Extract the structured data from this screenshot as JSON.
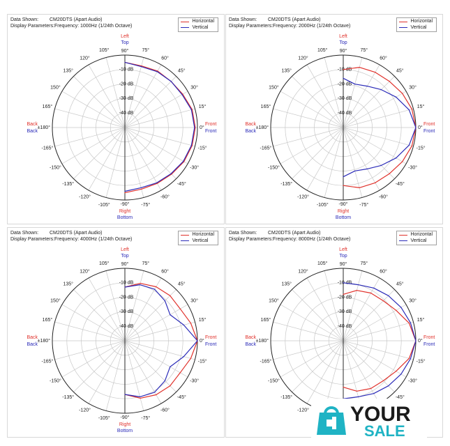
{
  "header_labels": {
    "data_shown": "Data Shown:",
    "display_parameters": "Display Parameters:"
  },
  "legend": {
    "horizontal": "Horizontal",
    "vertical": "Vertical"
  },
  "colors": {
    "horizontal": "#e0302a",
    "vertical": "#2a2ab8",
    "grid": "#c8c8c8",
    "ring": "#222222",
    "text": "#202020"
  },
  "dir_labels": {
    "left": "Left",
    "top": "Top",
    "right": "Right",
    "bottom": "Bottom",
    "front": "Front",
    "back": "Back"
  },
  "angle_labels": [
    "90°",
    "75°",
    "60°",
    "45°",
    "30°",
    "15°",
    "0°",
    "-15°",
    "-30°",
    "-45°",
    "-60°",
    "-75°",
    "-90°",
    "-105°",
    "-120°",
    "-135°",
    "-150°",
    "-165°",
    "±180°",
    "165°",
    "150°",
    "135°",
    "120°",
    "105°"
  ],
  "db_labels": [
    "-10 dB",
    "-20 dB",
    "-30 dB",
    "-40 dB"
  ],
  "panels": [
    {
      "data_shown": "CM20DTS (Apart Audio)",
      "display_parameters": "Frequency: 1000Hz (1/24th Octave)"
    },
    {
      "data_shown": "CM20DTS (Apart Audio)",
      "display_parameters": "Frequency: 2000Hz (1/24th Octave)"
    },
    {
      "data_shown": "CM20DTS (Apart Audio)",
      "display_parameters": "Frequency: 4000Hz (1/24th Octave)"
    },
    {
      "data_shown": "CM20DTS (Apart Audio)",
      "display_parameters": "Frequency: 8000Hz (1/24th Octave)"
    }
  ],
  "watermark": {
    "line1": "YOUR",
    "line2": "SALE"
  },
  "chart_data": [
    {
      "type": "line",
      "subtype": "polar",
      "r_unit": "dB",
      "rlim": [
        -50,
        0
      ],
      "angles": [
        90,
        75,
        60,
        45,
        30,
        15,
        0,
        -15,
        -30,
        -45,
        -60,
        -75,
        -90
      ],
      "series": [
        {
          "name": "Horizontal",
          "values": [
            -5,
            -6,
            -5,
            -5,
            -4,
            -2,
            -1.5,
            -2,
            -3,
            -4.5,
            -5.5,
            -6,
            -5
          ]
        },
        {
          "name": "Vertical",
          "values": [
            -5,
            -6.5,
            -5.5,
            -5,
            -4.5,
            -2.5,
            -2,
            -2.5,
            -3.5,
            -5,
            -6,
            -7,
            -6
          ]
        }
      ]
    },
    {
      "type": "line",
      "subtype": "polar",
      "r_unit": "dB",
      "rlim": [
        -50,
        0
      ],
      "angles": [
        90,
        75,
        60,
        45,
        30,
        15,
        0,
        -15,
        -30,
        -45,
        -60,
        -75,
        -90
      ],
      "series": [
        {
          "name": "Horizontal",
          "values": [
            -10,
            -7,
            -6,
            -5,
            -3,
            -1,
            0,
            -1,
            -3,
            -5,
            -6,
            -7,
            -10
          ]
        },
        {
          "name": "Vertical",
          "values": [
            -16,
            -19,
            -17,
            -13,
            -8,
            -3,
            0,
            -3,
            -8,
            -13,
            -17,
            -19,
            -16
          ]
        }
      ]
    },
    {
      "type": "line",
      "subtype": "polar",
      "r_unit": "dB",
      "rlim": [
        -50,
        0
      ],
      "angles": [
        90,
        75,
        60,
        45,
        30,
        15,
        0,
        -15,
        -30,
        -45,
        -60,
        -75,
        -90
      ],
      "series": [
        {
          "name": "Horizontal",
          "values": [
            -13,
            -9,
            -7,
            -6,
            -6,
            -3,
            0,
            -3,
            -6,
            -6,
            -7,
            -9,
            -13
          ]
        },
        {
          "name": "Vertical",
          "values": [
            -13,
            -10,
            -9,
            -11,
            -14,
            -8,
            0,
            -8,
            -14,
            -11,
            -9,
            -10,
            -13
          ]
        }
      ]
    },
    {
      "type": "line",
      "subtype": "polar",
      "r_unit": "dB",
      "rlim": [
        -50,
        0
      ],
      "angles": [
        90,
        75,
        60,
        45,
        30,
        15,
        0,
        -15,
        -30,
        -45,
        -60,
        -75,
        -90
      ],
      "series": [
        {
          "name": "Horizontal",
          "values": [
            -18,
            -14,
            -12,
            -11,
            -8,
            -3,
            0,
            -3,
            -8,
            -11,
            -12,
            -14,
            -18
          ]
        },
        {
          "name": "Vertical",
          "values": [
            -10,
            -10,
            -8,
            -6,
            -4,
            -2,
            0,
            -2,
            -4,
            -6,
            -8,
            -10,
            -10
          ]
        }
      ]
    }
  ]
}
